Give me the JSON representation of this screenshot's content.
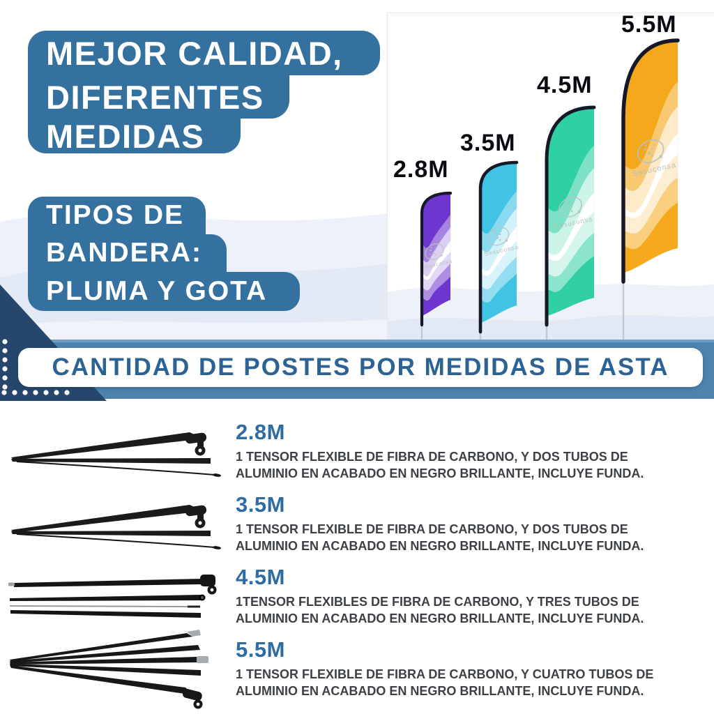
{
  "brand_watermark": "Sesuconsa",
  "colors": {
    "banner_blue": "#35719f",
    "band_blue": "#4d84ad",
    "wedge_navy": "#26476b",
    "title_blue": "#2c6394",
    "size_label_blue": "#2e6ca3",
    "description_gray": "#3d4145",
    "flag_label_black": "#0a0b10",
    "pole_black": "#141827",
    "flag_purple": "#6f35cf",
    "flag_cyan": "#41c4e4",
    "flag_teal": "#30d0a4",
    "flag_orange": "#f6a91c"
  },
  "header": {
    "quality_banner_lines": [
      "MEJOR CALIDAD,",
      "DIFERENTES",
      "MEDIDAS"
    ],
    "types_banner_lines": [
      "TIPOS DE",
      "BANDERA:",
      "PLUMA Y GOTA"
    ]
  },
  "flags": [
    {
      "label": "2.8M",
      "color_name": "purple",
      "color": "#6f35cf"
    },
    {
      "label": "3.5M",
      "color_name": "cyan",
      "color": "#41c4e4"
    },
    {
      "label": "4.5M",
      "color_name": "teal",
      "color": "#30d0a4"
    },
    {
      "label": "5.5M",
      "color_name": "orange",
      "color": "#f6a91c"
    }
  ],
  "section_title": "CANTIDAD DE POSTES POR MEDIDAS DE ASTA",
  "pole_rows": [
    {
      "size": "2.8M",
      "desc_line1": "1 TENSOR FLEXIBLE DE FIBRA DE CARBONO, Y DOS TUBOS DE",
      "desc_line2": "ALUMINIO EN ACABADO EN NEGRO BRILLANTE, INCLUYE FUNDA."
    },
    {
      "size": "3.5M",
      "desc_line1": "1 TENSOR FLEXIBLE DE FIBRA DE CARBONO, Y DOS TUBOS DE",
      "desc_line2": "ALUMINIO EN ACABADO EN NEGRO BRILLANTE, INCLUYE FUNDA."
    },
    {
      "size": "4.5M",
      "desc_line1": "1TENSOR FLEXIBLES DE FIBRA DE CARBONO, Y TRES TUBOS DE",
      "desc_line2": "ALUMINIO EN ACABADO EN NEGRO BRILLANTE, INCLUYE FUNDA."
    },
    {
      "size": "5.5M",
      "desc_line1": "1 TENSOR FLEXIBLE DE FIBRA DE CARBONO, Y CUATRO TUBOS DE",
      "desc_line2": "ALUMINIO EN ACABADO EN NEGRO BRILLANTE, INCLUYE FUNDA."
    }
  ]
}
